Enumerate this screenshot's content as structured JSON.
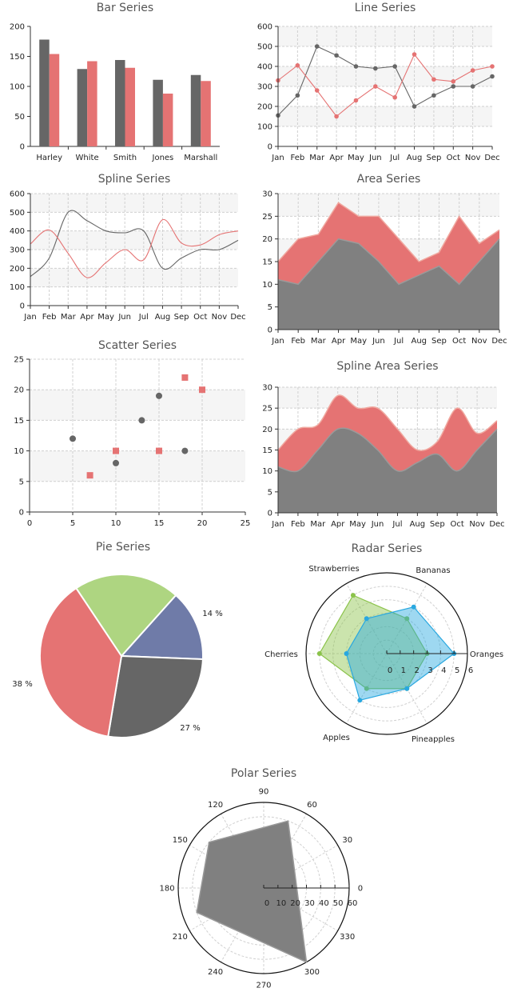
{
  "colors": {
    "dark": "#666666",
    "red": "#e57373",
    "green": "#aed581",
    "blue": "#6f7ba8",
    "sky": "#4fc3f7",
    "grid": "#d0d0d0",
    "band": "#f5f5f5"
  },
  "chart_data": [
    {
      "id": "bar",
      "type": "bar",
      "title": "Bar Series",
      "categories": [
        "Harley",
        "White",
        "Smith",
        "Jones",
        "Marshall"
      ],
      "series": [
        {
          "values": [
            178,
            129,
            144,
            111,
            119
          ],
          "color": "#666666"
        },
        {
          "values": [
            154,
            142,
            131,
            88,
            109
          ],
          "color": "#e57373"
        }
      ],
      "ylim": [
        0,
        200
      ],
      "yticks": [
        "0",
        "50",
        "100",
        "150",
        "200"
      ],
      "grid": false
    },
    {
      "id": "line",
      "type": "line",
      "title": "Line Series",
      "categories": [
        "Jan",
        "Feb",
        "Mar",
        "Apr",
        "May",
        "Jun",
        "Jul",
        "Aug",
        "Sep",
        "Oct",
        "Nov",
        "Dec"
      ],
      "series": [
        {
          "values": [
            155,
            255,
            500,
            455,
            400,
            390,
            400,
            200,
            255,
            300,
            300,
            350
          ],
          "color": "#666666"
        },
        {
          "values": [
            330,
            405,
            280,
            150,
            230,
            300,
            245,
            460,
            335,
            325,
            380,
            400
          ],
          "color": "#e57373"
        }
      ],
      "ylim": [
        0,
        600
      ],
      "yticks": [
        "0",
        "100",
        "200",
        "300",
        "400",
        "500",
        "600"
      ],
      "grid": true
    },
    {
      "id": "spline",
      "type": "line",
      "smooth": true,
      "title": "Spline Series",
      "categories": [
        "Jan",
        "Feb",
        "Mar",
        "Apr",
        "May",
        "Jun",
        "Jul",
        "Aug",
        "Sep",
        "Oct",
        "Nov",
        "Dec"
      ],
      "series": [
        {
          "values": [
            155,
            255,
            500,
            455,
            400,
            390,
            400,
            200,
            255,
            300,
            300,
            350
          ],
          "color": "#666666"
        },
        {
          "values": [
            330,
            405,
            280,
            150,
            230,
            300,
            245,
            460,
            335,
            325,
            380,
            400
          ],
          "color": "#e57373"
        }
      ],
      "ylim": [
        0,
        600
      ],
      "yticks": [
        "0",
        "100",
        "200",
        "300",
        "400",
        "500",
        "600"
      ],
      "grid": true
    },
    {
      "id": "area",
      "type": "area",
      "title": "Area Series",
      "categories": [
        "Jan",
        "Feb",
        "Mar",
        "Apr",
        "May",
        "Jun",
        "Jul",
        "Aug",
        "Sep",
        "Oct",
        "Nov",
        "Dec"
      ],
      "series": [
        {
          "values": [
            11,
            10,
            15,
            20,
            19,
            15,
            10,
            12,
            14,
            10,
            15,
            20
          ],
          "color": "#808080"
        },
        {
          "values": [
            15,
            20,
            21,
            28,
            25,
            25,
            20,
            15,
            17,
            25,
            19,
            22
          ],
          "color": "#e57373"
        }
      ],
      "ylim": [
        0,
        30
      ],
      "yticks": [
        "0",
        "5",
        "10",
        "15",
        "20",
        "25",
        "30"
      ],
      "grid": true
    },
    {
      "id": "scatter",
      "type": "scatter",
      "title": "Scatter Series",
      "xlim": [
        0,
        25
      ],
      "ylim": [
        0,
        25
      ],
      "xticks": [
        "0",
        "5",
        "10",
        "15",
        "20",
        "25"
      ],
      "yticks": [
        "0",
        "5",
        "10",
        "15",
        "20",
        "25"
      ],
      "series": [
        {
          "points": [
            [
              5,
              12
            ],
            [
              10,
              8
            ],
            [
              13,
              15
            ],
            [
              15,
              19
            ],
            [
              18,
              10
            ]
          ],
          "color": "#666666",
          "marker": "circle"
        },
        {
          "points": [
            [
              7,
              6
            ],
            [
              10,
              10
            ],
            [
              15,
              10
            ],
            [
              18,
              22
            ],
            [
              20,
              20
            ]
          ],
          "color": "#e57373",
          "marker": "square"
        }
      ],
      "grid": true
    },
    {
      "id": "splinearea",
      "type": "area",
      "smooth": true,
      "title": "Spline Area Series",
      "categories": [
        "Jan",
        "Feb",
        "Mar",
        "Apr",
        "May",
        "Jun",
        "Jul",
        "Aug",
        "Sep",
        "Oct",
        "Nov",
        "Dec"
      ],
      "series": [
        {
          "values": [
            11,
            10,
            15,
            20,
            19,
            15,
            10,
            12,
            14,
            10,
            15,
            20
          ],
          "color": "#808080"
        },
        {
          "values": [
            15,
            20,
            21,
            28,
            25,
            25,
            20,
            15,
            17,
            25,
            19,
            22
          ],
          "color": "#e57373"
        }
      ],
      "ylim": [
        0,
        30
      ],
      "yticks": [
        "0",
        "5",
        "10",
        "15",
        "20",
        "25",
        "30"
      ],
      "grid": true
    },
    {
      "id": "pie",
      "type": "pie",
      "title": "Pie Series",
      "slices": [
        {
          "value": 14,
          "label": "14 %",
          "color": "#6f7ba8"
        },
        {
          "value": 27,
          "label": "27 %",
          "color": "#666666"
        },
        {
          "value": 38,
          "label": "38 %",
          "color": "#e57373"
        },
        {
          "value": 21,
          "label": "",
          "color": "#aed581"
        }
      ]
    },
    {
      "id": "radar",
      "type": "radar",
      "title": "Radar Series",
      "categories": [
        "Oranges",
        "Bananas",
        "Strawberries",
        "Cherries",
        "Apples",
        "Pineapples"
      ],
      "rlim": [
        0,
        6
      ],
      "rticks": [
        "0",
        "1",
        "2",
        "3",
        "4",
        "5",
        "6"
      ],
      "series": [
        {
          "values": [
            3,
            3,
            5,
            5,
            3,
            3
          ],
          "color": "#8bc34a"
        },
        {
          "values": [
            5,
            4,
            3,
            3,
            4,
            3
          ],
          "color": "#29a8e0"
        }
      ]
    },
    {
      "id": "polar",
      "type": "polar",
      "title": "Polar Series",
      "angle_ticks": [
        "0",
        "30",
        "60",
        "90",
        "120",
        "150",
        "180",
        "210",
        "240",
        "270",
        "300",
        "330"
      ],
      "rlim": [
        0,
        60
      ],
      "rticks": [
        "0",
        "10",
        "20",
        "30",
        "40",
        "50",
        "60"
      ],
      "series": [
        {
          "points": [
            [
              70,
              50
            ],
            [
              140,
              50
            ],
            [
              200,
              50
            ],
            [
              300,
              60
            ]
          ],
          "color": "#808080"
        }
      ]
    }
  ]
}
